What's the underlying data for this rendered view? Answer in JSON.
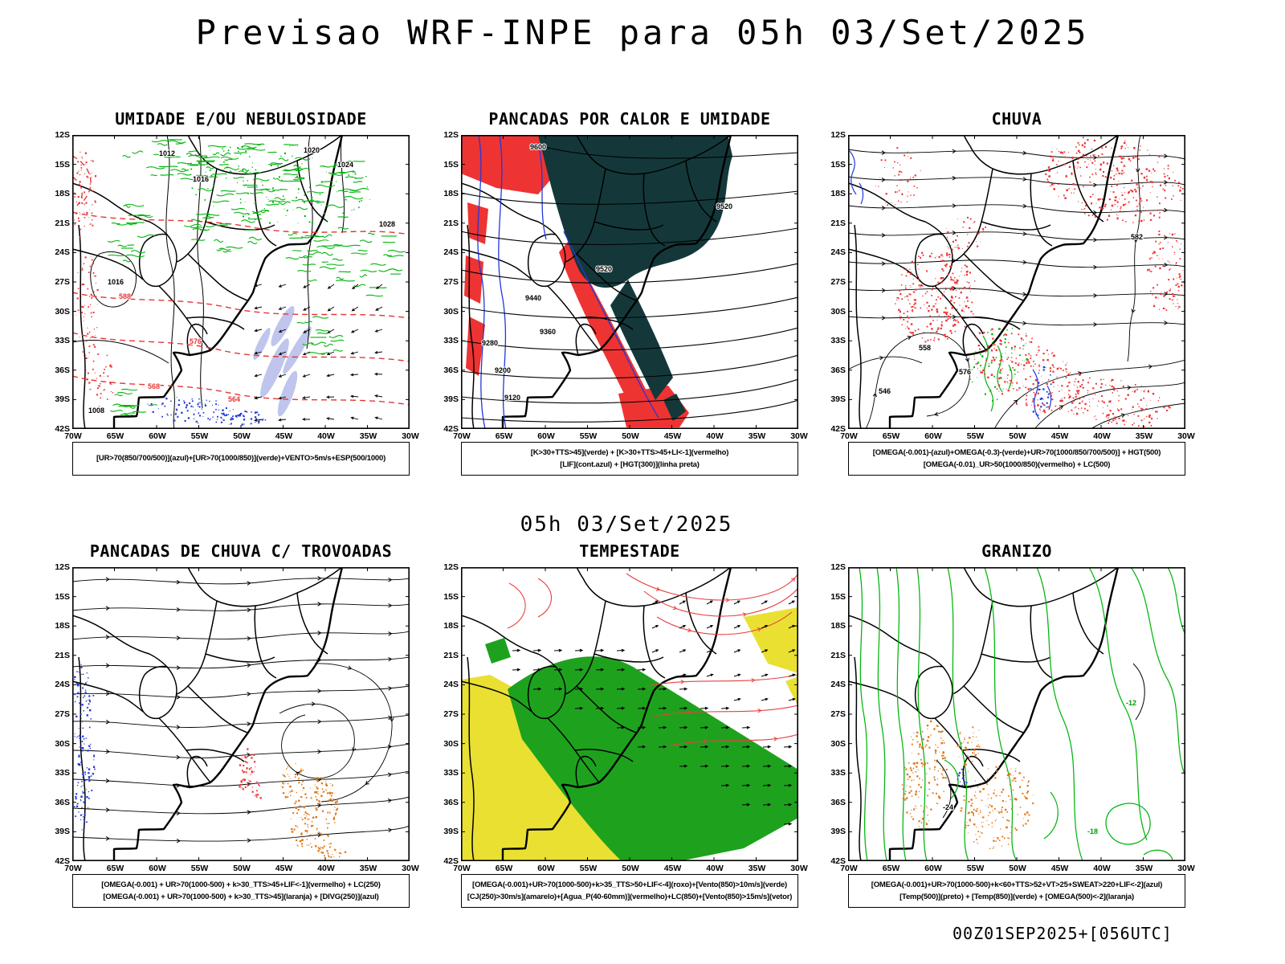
{
  "header": {
    "title": "Previsao WRF-INPE  para 05h 03/Set/2025"
  },
  "forecast_time_label": "05h 03/Set/2025",
  "run_label": "00Z01SEP2025+[056UTC]",
  "axes": {
    "lat": [
      "12S",
      "15S",
      "18S",
      "21S",
      "24S",
      "27S",
      "30S",
      "33S",
      "36S",
      "39S",
      "42S"
    ],
    "lon": [
      "70W",
      "65W",
      "60W",
      "55W",
      "50W",
      "45W",
      "40W",
      "35W",
      "30W"
    ]
  },
  "colors": {
    "red_shading": "#ee3333",
    "red_contour": "#e83535",
    "dark_storm": "#14383a",
    "green_area": "#1ea21e",
    "green_contour": "#00b40c",
    "yellow_area": "#e9e032",
    "blue_contour": "#2238d8",
    "orange_speckle": "#e07818",
    "purple_shading": "#b9bfea"
  },
  "panels": [
    {
      "id": "umidade",
      "title": "UMIDADE E/OU NEBULOSIDADE",
      "caption_lines": [
        "[UR>70(850/700/500)](azul)+[UR>70(1000/850)](verde)+VENTO>5m/s+ESP(500/1000)"
      ]
    },
    {
      "id": "pancadas-calor",
      "title": "PANCADAS POR CALOR E UMIDADE",
      "caption_lines": [
        "[K>30+TTS>45](verde) + [K>30+TTS>45+LI<-1](vermelho)",
        "[LIF](cont.azul) + [HGT(300)](linha preta)"
      ]
    },
    {
      "id": "chuva",
      "title": "CHUVA",
      "caption_lines": [
        "[OMEGA(-0.001)-(azul)+OMEGA(-0.3)-(verde)+UR>70(1000/850/700/500)] + HGT(500)",
        "[OMEGA(-0.01)_UR>50(1000/850)(vermelho) + LC(500)"
      ]
    },
    {
      "id": "trovoadas",
      "title": "PANCADAS DE CHUVA C/ TROVOADAS",
      "caption_lines": [
        "[OMEGA(-0.001) + UR>70(1000-500) + k>30_TTS>45+LIF<-1](vermelho) + LC(250)",
        "[OMEGA(-0.001) + UR>70(1000-500) + k>30_TTS>45](laranja) + [DIVG(250)](azul)"
      ]
    },
    {
      "id": "tempestade",
      "title": "TEMPESTADE",
      "caption_lines": [
        "[OMEGA(-0.001)+UR>70(1000-500)+k>35_TTS>50+LIF<-4](roxo)+[Vento(850)>10m/s](verde)",
        "[CJ(250)>30m/s](amarelo)+[Agua_P(40-60mm)](vermelho)+LC(850)+[Vento(850)>15m/s](vetor)"
      ]
    },
    {
      "id": "granizo",
      "title": "GRANIZO",
      "caption_lines": [
        "[OMEGA(-0.001)+UR>70(1000-500)+k<60+TTS>52+VT>25+SWEAT>220+LIF<-2](azul)",
        "[Temp(500)](preto) + [Temp(850)](verde) + [OMEGA(500)<-2](laranja)"
      ]
    }
  ],
  "contour_labels": {
    "umidade_black": [
      "1012",
      "1016",
      "1020",
      "1024",
      "1028",
      "1016",
      "1008"
    ],
    "umidade_red": [
      "588",
      "576",
      "568",
      "564"
    ],
    "calor_black": [
      "9600",
      "9520",
      "9520",
      "9440",
      "9360",
      "9280",
      "9200",
      "9120"
    ],
    "chuva_black": [
      "582",
      "576",
      "558",
      "546"
    ],
    "granizo_green": [
      "-12",
      "-18"
    ],
    "granizo_black": [
      "-24"
    ]
  }
}
